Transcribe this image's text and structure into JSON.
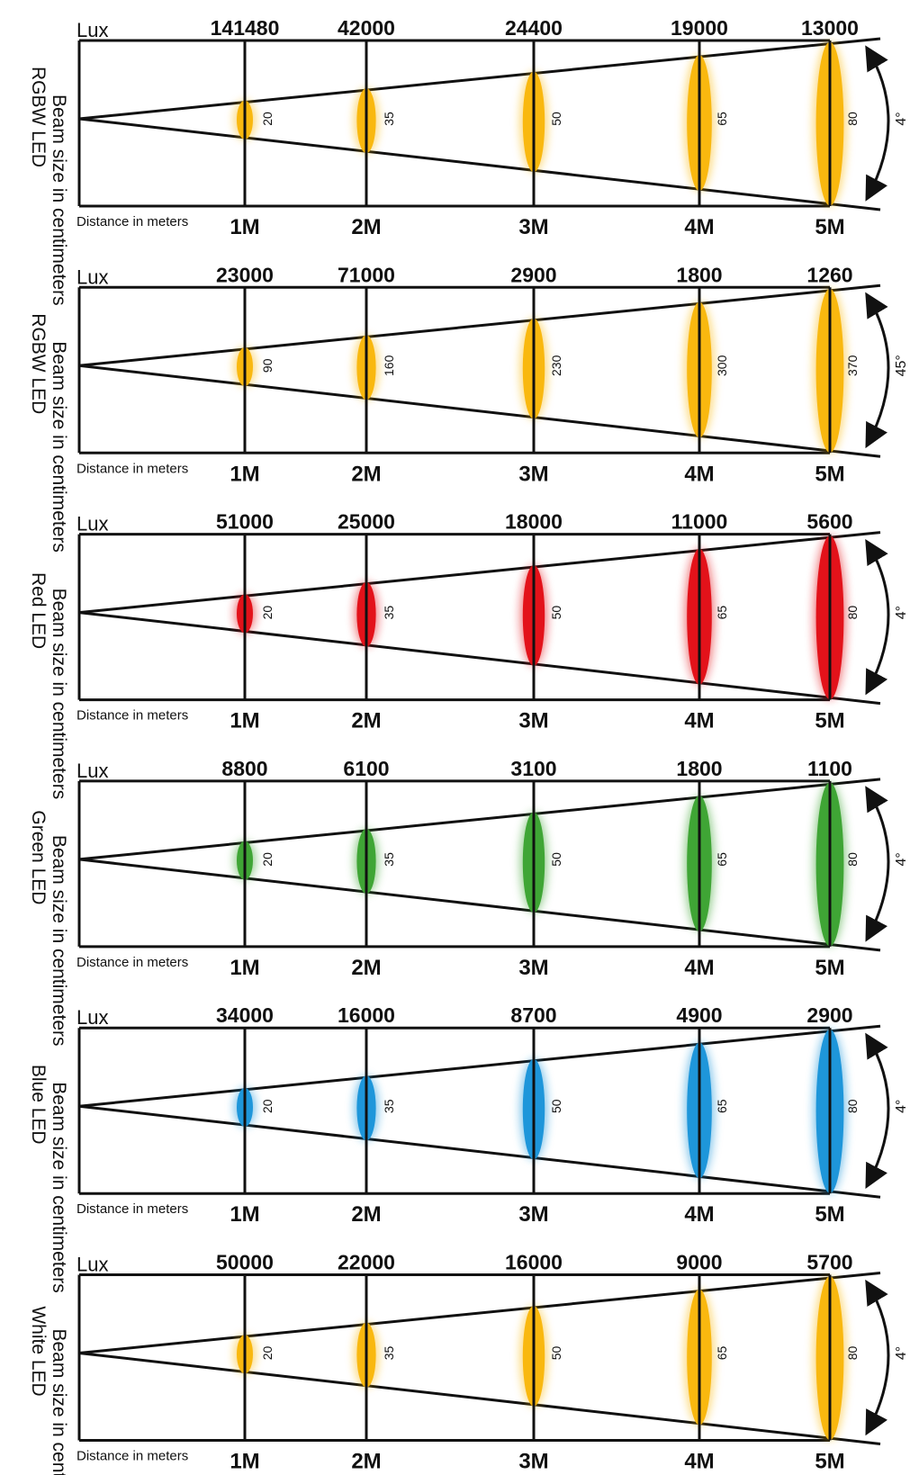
{
  "labels": {
    "lux": "Lux",
    "distance": "Distance in meters",
    "beam_size": "Beam size in centimeters"
  },
  "distances": [
    "1M",
    "2M",
    "3M",
    "4M",
    "5M"
  ],
  "colors": {
    "amber": "#F9B80F",
    "red": "#E3121A",
    "green": "#3FA535",
    "blue": "#1E96DA",
    "line": "#111111"
  },
  "panels": [
    {
      "led": "RGBW LED",
      "angle": "4°",
      "color": "amber",
      "lux": [
        "141480",
        "42000",
        "24400",
        "19000",
        "13000"
      ],
      "beam": [
        "20",
        "35",
        "50",
        "65",
        "80"
      ]
    },
    {
      "led": "RGBW LED",
      "angle": "45°",
      "color": "amber",
      "lux": [
        "23000",
        "71000",
        "2900",
        "1800",
        "1260"
      ],
      "beam": [
        "90",
        "160",
        "230",
        "300",
        "370"
      ]
    },
    {
      "led": "Red LED",
      "angle": "4°",
      "color": "red",
      "lux": [
        "51000",
        "25000",
        "18000",
        "11000",
        "5600"
      ],
      "beam": [
        "20",
        "35",
        "50",
        "65",
        "80"
      ]
    },
    {
      "led": "Green LED",
      "angle": "4°",
      "color": "green",
      "lux": [
        "8800",
        "6100",
        "3100",
        "1800",
        "1100"
      ],
      "beam": [
        "20",
        "35",
        "50",
        "65",
        "80"
      ]
    },
    {
      "led": "Blue LED",
      "angle": "4°",
      "color": "blue",
      "lux": [
        "34000",
        "16000",
        "8700",
        "4900",
        "2900"
      ],
      "beam": [
        "20",
        "35",
        "50",
        "65",
        "80"
      ]
    },
    {
      "led": "White LED",
      "angle": "4°",
      "color": "amber",
      "lux": [
        "50000",
        "22000",
        "16000",
        "9000",
        "5700"
      ],
      "beam": [
        "20",
        "35",
        "50",
        "65",
        "80"
      ]
    }
  ]
}
